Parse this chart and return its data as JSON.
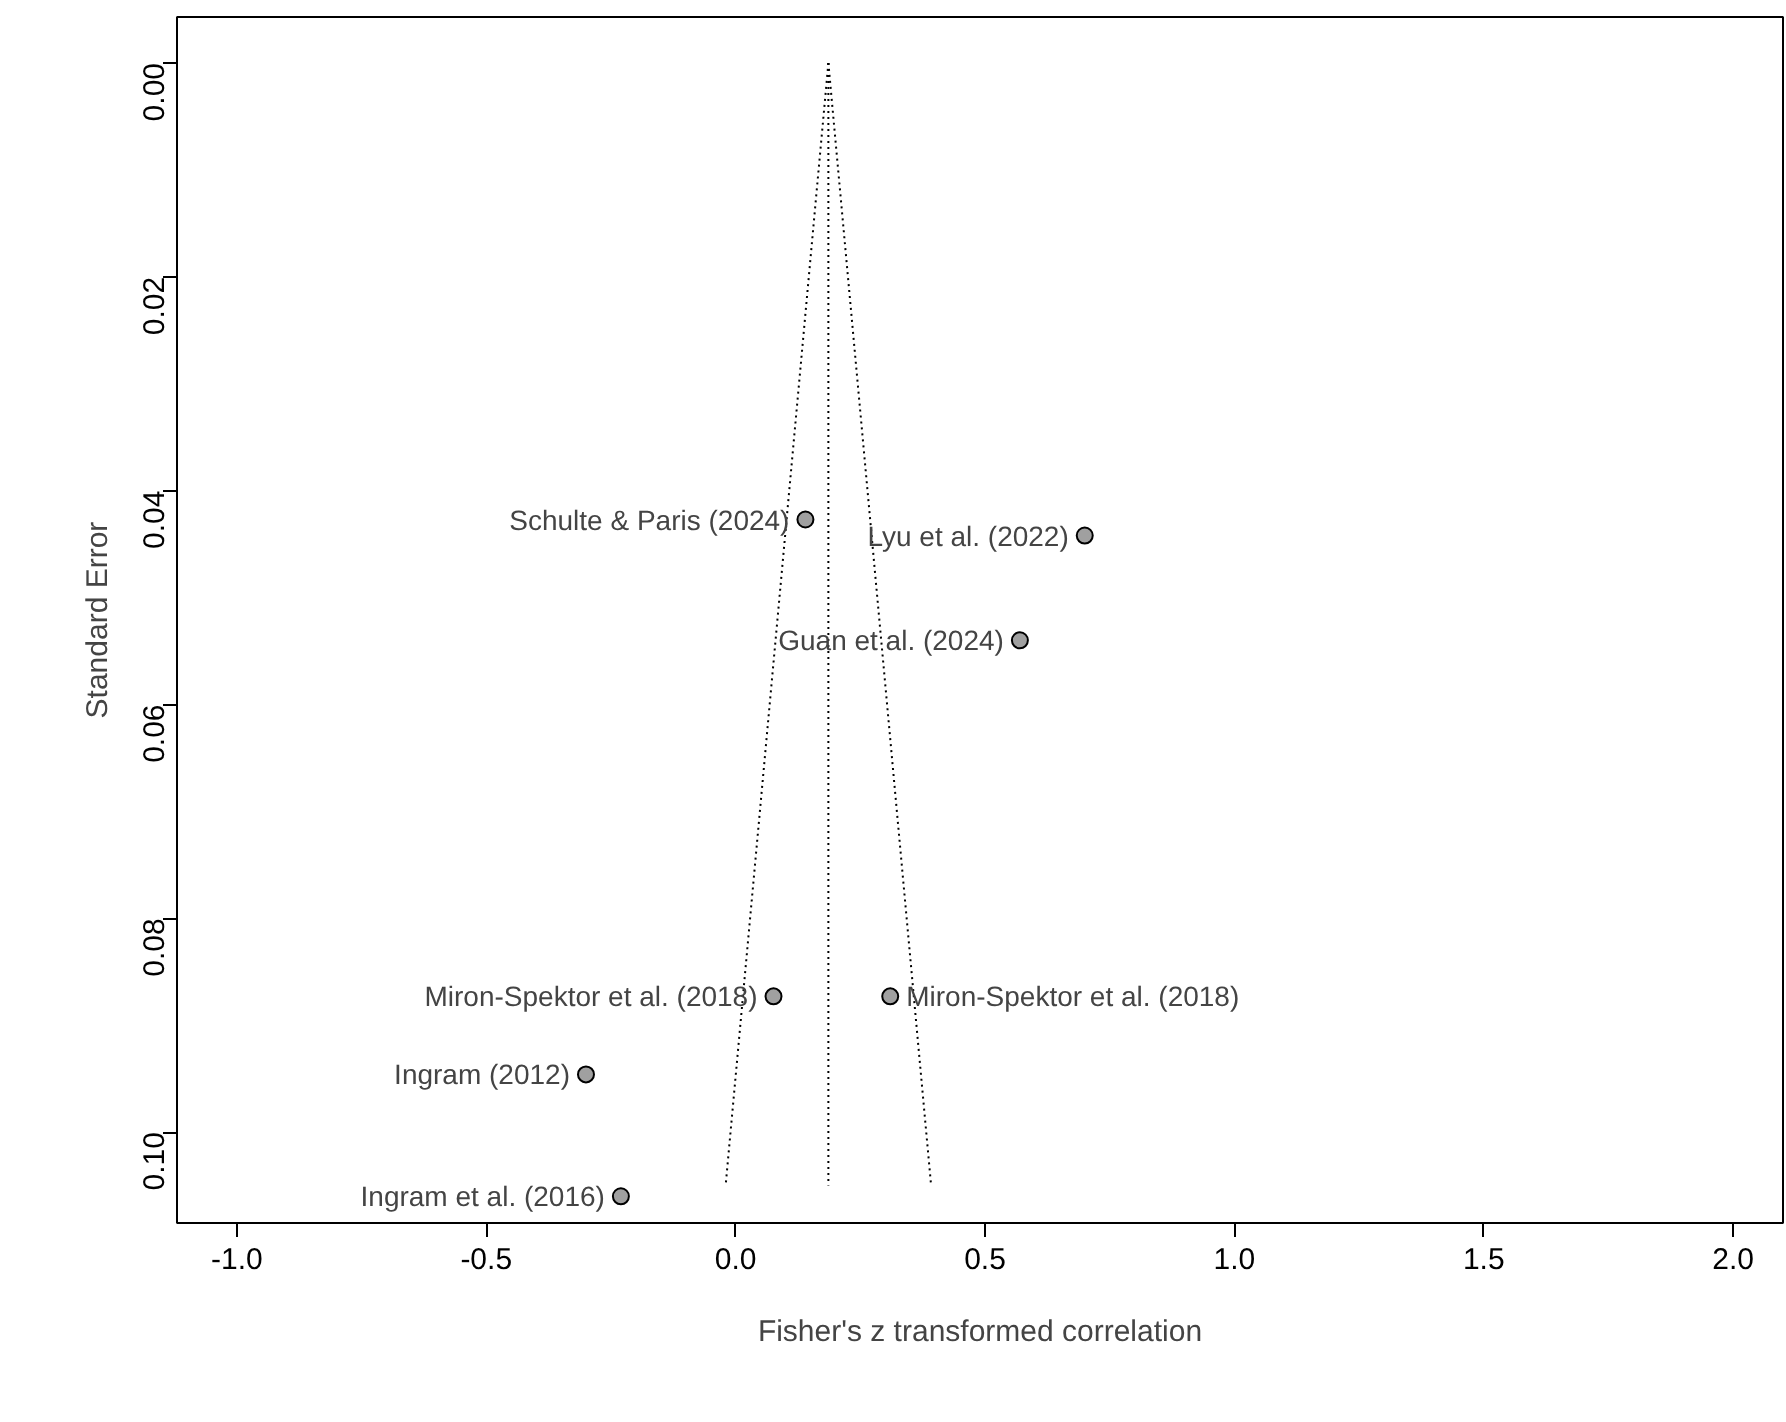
{
  "chart_data": {
    "type": "scatter",
    "xlabel": "Fisher's z transformed correlation",
    "ylabel": "Standard Error",
    "xlim": [
      -1.12,
      2.1
    ],
    "ylim": [
      0.1085,
      -0.0043
    ],
    "xticks": [
      {
        "value": -1.0,
        "label": "-1.0"
      },
      {
        "value": -0.5,
        "label": "-0.5"
      },
      {
        "value": 0.0,
        "label": "0.0"
      },
      {
        "value": 0.5,
        "label": "0.5"
      },
      {
        "value": 1.0,
        "label": "1.0"
      },
      {
        "value": 1.5,
        "label": "1.5"
      },
      {
        "value": 2.0,
        "label": "2.0"
      }
    ],
    "yticks": [
      {
        "value": 0.0,
        "label": "0.00"
      },
      {
        "value": 0.02,
        "label": "0.02"
      },
      {
        "value": 0.04,
        "label": "0.04"
      },
      {
        "value": 0.06,
        "label": "0.06"
      },
      {
        "value": 0.08,
        "label": "0.08"
      },
      {
        "value": 0.1,
        "label": "0.10"
      }
    ],
    "grid": false,
    "marker": "circle",
    "series": [
      {
        "color": "#a0a0a0",
        "x": [
          0.14,
          0.7,
          0.57,
          0.31,
          0.076,
          -0.3,
          -0.23
        ],
        "values": [
          0.0427,
          0.0442,
          0.054,
          0.0873,
          0.0873,
          0.0946,
          0.106
        ]
      },
      {
        "type": "line",
        "color": "#000000",
        "line_style": "dotted",
        "marker": "none",
        "x": [
          0.186,
          -0.02
        ],
        "values": [
          0.0,
          0.105
        ]
      },
      {
        "type": "line",
        "color": "#000000",
        "line_style": "dotted",
        "marker": "none",
        "x": [
          0.186,
          0.186
        ],
        "values": [
          0.0,
          0.105
        ]
      },
      {
        "type": "line",
        "color": "#000000",
        "line_style": "dotted",
        "marker": "none",
        "x": [
          0.186,
          0.392
        ],
        "values": [
          0.0,
          0.105
        ]
      }
    ],
    "annotations": [
      {
        "text": "Schulte & Paris (2024)",
        "x": 0.14,
        "y": 0.0427
      },
      {
        "text": "Lyu et al. (2022)",
        "x": 0.7,
        "y": 0.0442
      },
      {
        "text": "Guan et al. (2024)",
        "x": 0.57,
        "y": 0.054
      },
      {
        "text": "Miron-Spektor et al. (2018)",
        "x": 0.31,
        "y": 0.0873
      },
      {
        "text": "Miron-Spektor et al. (2018)",
        "x": 0.076,
        "y": 0.0873
      },
      {
        "text": "Ingram (2012)",
        "x": -0.3,
        "y": 0.0946
      },
      {
        "text": "Ingram et al. (2016)",
        "x": -0.23,
        "y": 0.106
      }
    ]
  }
}
